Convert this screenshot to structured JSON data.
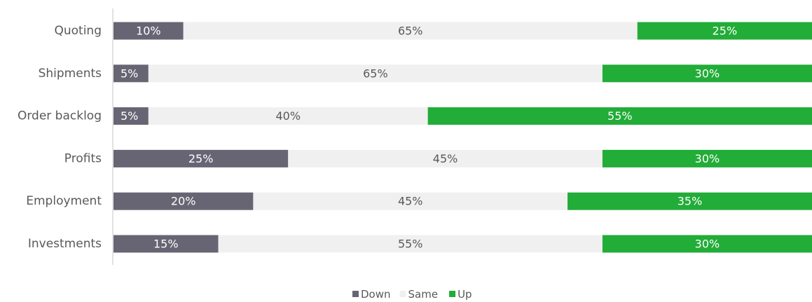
{
  "chart_data": {
    "type": "bar",
    "orientation": "horizontal",
    "stacked": "100%",
    "categories": [
      "Quoting",
      "Shipments",
      "Order backlog",
      "Profits",
      "Employment",
      "Investments"
    ],
    "series": [
      {
        "name": "Down",
        "values": [
          10,
          5,
          5,
          25,
          20,
          15
        ],
        "labels": [
          "10%",
          "5%",
          "5%",
          "25%",
          "20%",
          "15%"
        ],
        "color": "#676573",
        "label_color": "#ffffff"
      },
      {
        "name": "Same",
        "values": [
          65,
          65,
          40,
          45,
          45,
          55
        ],
        "labels": [
          "65%",
          "65%",
          "40%",
          "45%",
          "45%",
          "55%"
        ],
        "color": "#f0f0f0",
        "label_color": "#595959"
      },
      {
        "name": "Up",
        "values": [
          25,
          30,
          55,
          30,
          35,
          30
        ],
        "labels": [
          "25%",
          "30%",
          "55%",
          "30%",
          "35%",
          "30%"
        ],
        "color": "#22ac38",
        "label_color": "#ffffff"
      }
    ],
    "xlim": [
      0,
      100
    ],
    "grid": false,
    "legend": "bottom-center",
    "title": "",
    "xlabel": "",
    "ylabel": ""
  }
}
